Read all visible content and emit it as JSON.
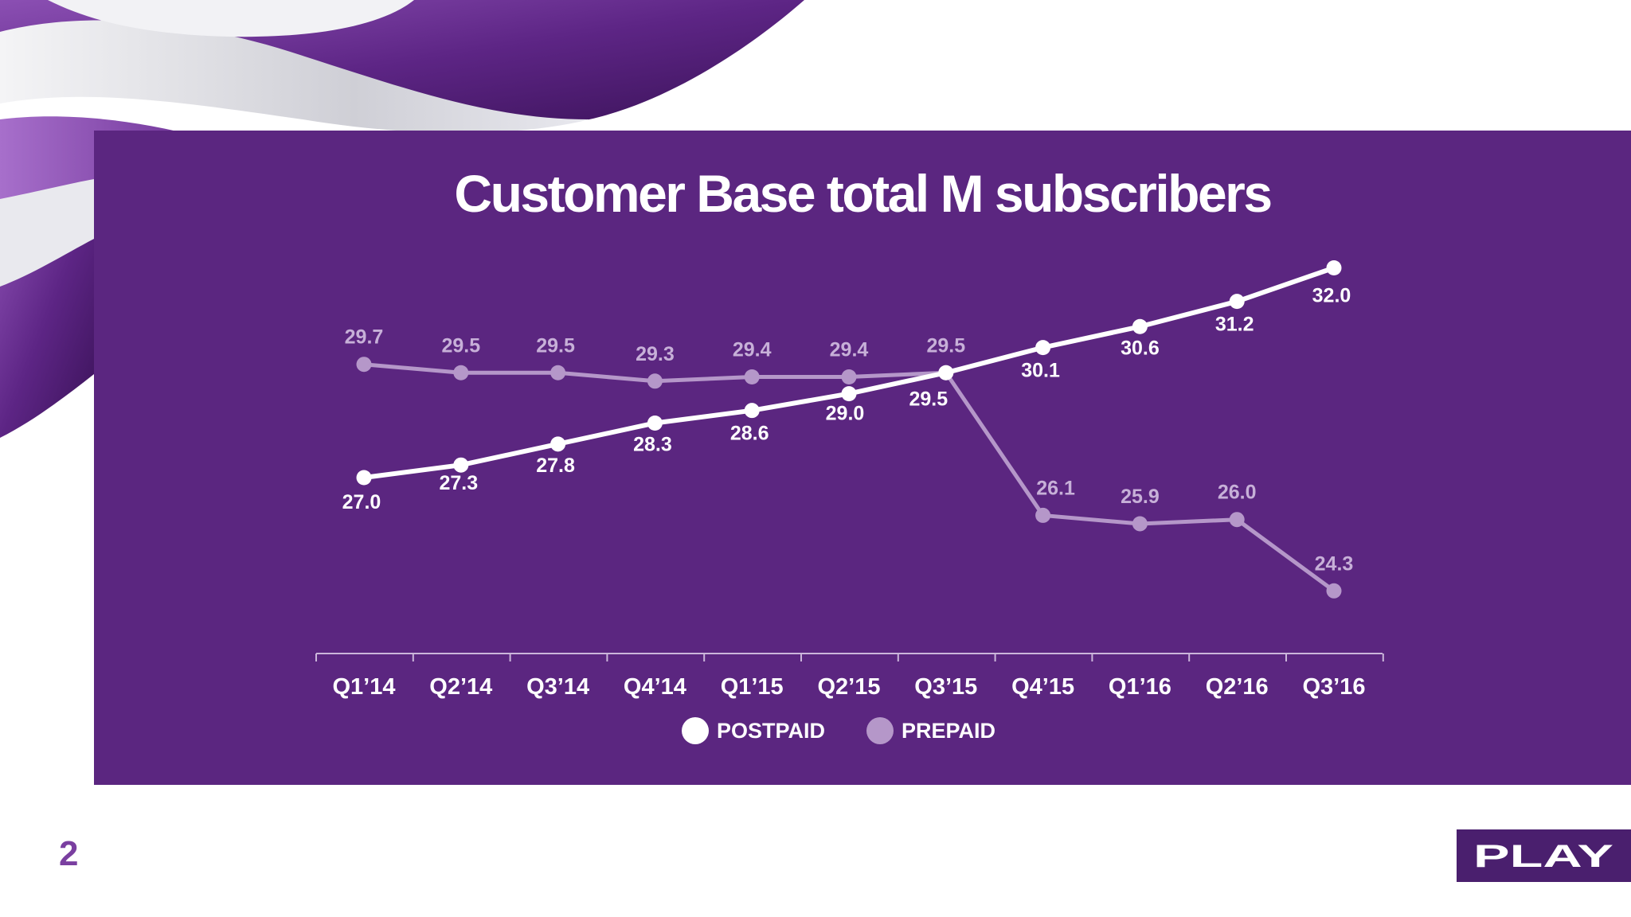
{
  "page_number": "2",
  "brand": {
    "logo_text": "PLAY",
    "panel_color": "#5b2680",
    "logo_bg": "#4a1f6e"
  },
  "chart_data": {
    "type": "line",
    "title": "Customer Base total M subscribers",
    "categories": [
      "Q1’14",
      "Q2’14",
      "Q3’14",
      "Q4’14",
      "Q1’15",
      "Q2’15",
      "Q3’15",
      "Q4’15",
      "Q1’16",
      "Q2’16",
      "Q3’16"
    ],
    "series": [
      {
        "name": "POSTPAID",
        "color": "#ffffff",
        "label_color": "#ffffff",
        "values": [
          27.0,
          27.3,
          27.8,
          28.3,
          28.6,
          29.0,
          29.5,
          30.1,
          30.6,
          31.2,
          32.0
        ]
      },
      {
        "name": "PREPAID",
        "color": "#b597c9",
        "label_color": "#c7b0d8",
        "values": [
          29.7,
          29.5,
          29.5,
          29.3,
          29.4,
          29.4,
          29.5,
          26.1,
          25.9,
          26.0,
          24.3
        ]
      }
    ],
    "legend_position": "bottom-center",
    "grid": false
  }
}
